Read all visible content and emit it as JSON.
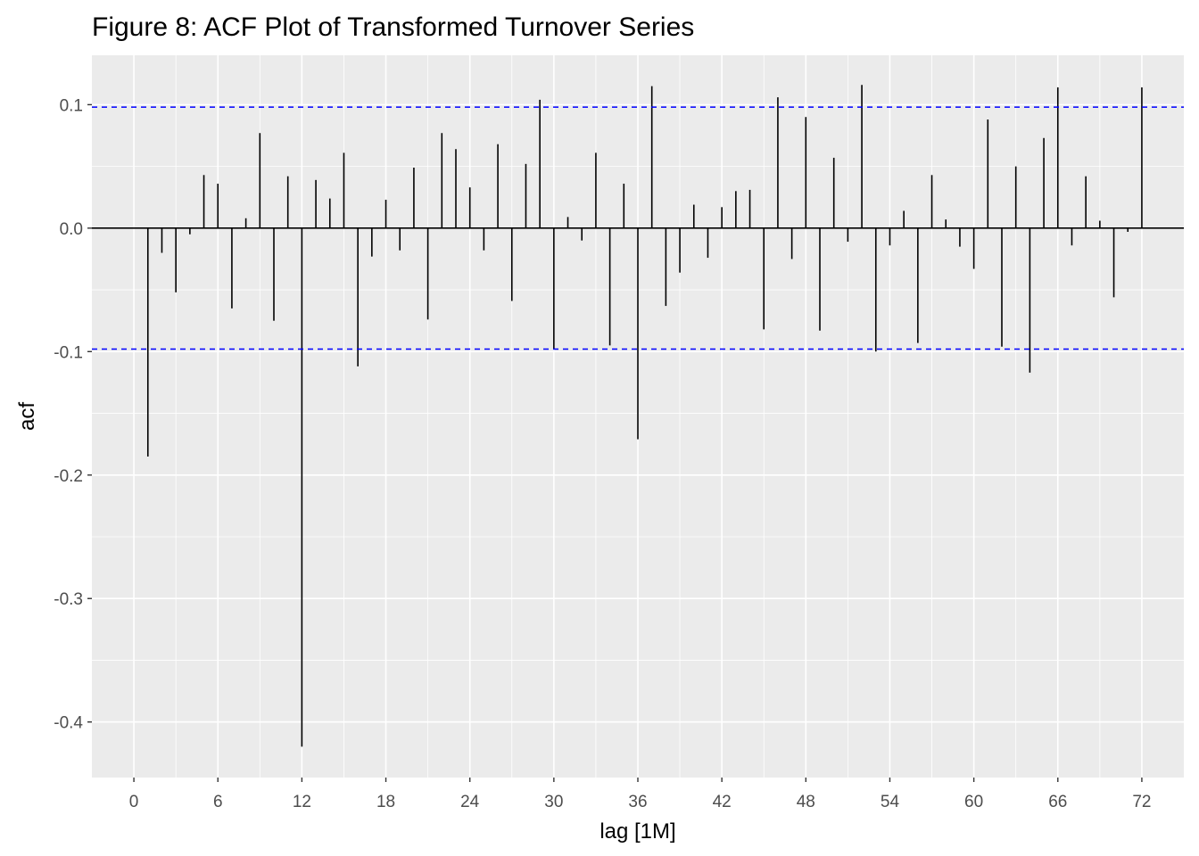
{
  "chart_data": {
    "type": "bar",
    "title": "Figure 8: ACF Plot of Transformed Turnover Series",
    "xlabel": "lag [1M]",
    "ylabel": "acf",
    "xlim": [
      -3,
      75
    ],
    "ylim": [
      -0.445,
      0.14
    ],
    "x_ticks": [
      0,
      6,
      12,
      18,
      24,
      30,
      36,
      42,
      48,
      54,
      60,
      66,
      72
    ],
    "y_ticks": [
      -0.4,
      -0.3,
      -0.2,
      -0.1,
      0.0,
      0.1
    ],
    "y_tick_labels": [
      "-0.4",
      "-0.3",
      "-0.2",
      "-0.1",
      "0.0",
      "0.1"
    ],
    "confidence_bound": 0.098,
    "colors": {
      "panel": "#ebebeb",
      "grid_major": "#ffffff",
      "bars": "#000000",
      "bound_line": "#0000ff"
    },
    "grid": true,
    "lags": [
      1,
      2,
      3,
      4,
      5,
      6,
      7,
      8,
      9,
      10,
      11,
      12,
      13,
      14,
      15,
      16,
      17,
      18,
      19,
      20,
      21,
      22,
      23,
      24,
      25,
      26,
      27,
      28,
      29,
      30,
      31,
      32,
      33,
      34,
      35,
      36,
      37,
      38,
      39,
      40,
      41,
      42,
      43,
      44,
      45,
      46,
      47,
      48,
      49,
      50,
      51,
      52,
      53,
      54,
      55,
      56,
      57,
      58,
      59,
      60,
      61,
      62,
      63,
      64,
      65,
      66,
      67,
      68,
      69,
      70,
      71,
      72
    ],
    "acf": [
      -0.185,
      -0.02,
      -0.052,
      -0.005,
      0.043,
      0.036,
      -0.065,
      0.008,
      0.077,
      -0.075,
      0.042,
      -0.42,
      0.039,
      0.024,
      0.061,
      -0.112,
      -0.023,
      0.023,
      -0.018,
      0.049,
      -0.074,
      0.077,
      0.064,
      0.033,
      -0.018,
      0.068,
      -0.059,
      0.052,
      0.104,
      -0.098,
      0.009,
      -0.01,
      0.061,
      -0.095,
      0.036,
      -0.171,
      0.115,
      -0.063,
      -0.036,
      0.019,
      -0.024,
      0.017,
      0.03,
      0.031,
      -0.082,
      0.106,
      -0.025,
      0.09,
      -0.083,
      0.057,
      -0.011,
      0.116,
      -0.1,
      -0.014,
      0.014,
      -0.093,
      0.043,
      0.007,
      -0.015,
      -0.033,
      0.088,
      -0.096,
      0.05,
      -0.117,
      0.073,
      0.114,
      -0.014,
      0.042,
      0.006,
      -0.056,
      -0.003,
      0.114
    ]
  }
}
